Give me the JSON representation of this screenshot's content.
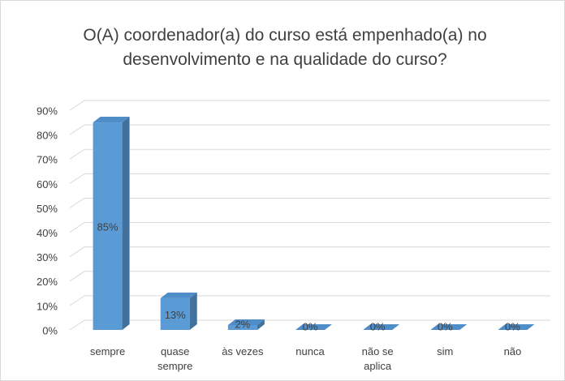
{
  "chart_data": {
    "type": "bar3d",
    "title": "O(A) coordenador(a) do curso está empenhado(a) no desenvolvimento e na qualidade do curso?",
    "categories": [
      "sempre",
      "quase sempre",
      "às vezes",
      "nunca",
      "não se aplica",
      "sim",
      "não"
    ],
    "values": [
      85,
      13,
      2,
      0,
      0,
      0,
      0
    ],
    "value_labels": [
      "85%",
      "13%",
      "2%",
      "0%",
      "0%",
      "0%",
      "0%"
    ],
    "color": "#5b9bd5",
    "ylim": [
      0,
      90
    ],
    "yticks": [
      {
        "value": 0,
        "label": "0%"
      },
      {
        "value": 10,
        "label": "10%"
      },
      {
        "value": 20,
        "label": "20%"
      },
      {
        "value": 30,
        "label": "30%"
      },
      {
        "value": 40,
        "label": "40%"
      },
      {
        "value": 50,
        "label": "50%"
      },
      {
        "value": 60,
        "label": "60%"
      },
      {
        "value": 70,
        "label": "70%"
      },
      {
        "value": 80,
        "label": "80%"
      },
      {
        "value": 90,
        "label": "90%"
      }
    ],
    "grid": true
  }
}
